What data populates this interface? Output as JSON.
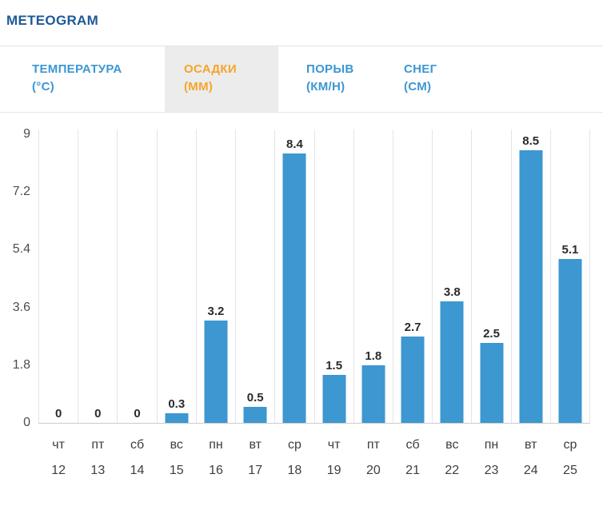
{
  "title": "METEOGRAM",
  "colors": {
    "title": "#1e5a96",
    "tab_text": "#3b97d3",
    "tab_active_text": "#f6a52a",
    "tab_active_bg": "#ececec",
    "bar": "#3d97d0",
    "value_label": "#2b2b2b",
    "axis_label": "#4d4d4d",
    "day_label": "#3e3e3e",
    "grid": "#e5e5e5",
    "axis_line": "#cccccc",
    "tab_border": "#e5e5e5"
  },
  "tabs": [
    {
      "id": "temperature",
      "line1": "ТЕМПЕРАТУРА",
      "line2": "(°C)",
      "active": false
    },
    {
      "id": "precipitation",
      "line1": "ОСАДКИ",
      "line2": "(ММ)",
      "active": true
    },
    {
      "id": "gust",
      "line1": "ПОРЫВ",
      "line2": "(КМ/Н)",
      "active": false
    },
    {
      "id": "snow",
      "line1": "СНЕГ",
      "line2": "(СМ)",
      "active": false
    }
  ],
  "chart_data": {
    "type": "bar",
    "title": "ОСАДКИ (ММ)",
    "xlabel": "",
    "ylabel": "",
    "categories": [
      "чт",
      "пт",
      "сб",
      "вс",
      "пн",
      "вт",
      "ср",
      "чт",
      "пт",
      "сб",
      "вс",
      "пн",
      "вт",
      "ср"
    ],
    "dates": [
      "12",
      "13",
      "14",
      "15",
      "16",
      "17",
      "18",
      "19",
      "20",
      "21",
      "22",
      "23",
      "24",
      "25"
    ],
    "values": [
      0,
      0,
      0,
      0.3,
      3.2,
      0.5,
      8.4,
      1.5,
      1.8,
      2.7,
      3.8,
      2.5,
      8.5,
      5.1
    ],
    "value_labels": [
      "0",
      "0",
      "0",
      "0.3",
      "3.2",
      "0.5",
      "8.4",
      "1.5",
      "1.8",
      "2.7",
      "3.8",
      "2.5",
      "8.5",
      "5.1"
    ],
    "yticks": [
      9,
      7.2,
      5.4,
      3.6,
      1.8,
      0
    ],
    "ylim": [
      0,
      9
    ],
    "grid": "vertical-only",
    "legend": "none",
    "bar_color": "#3d97d0"
  }
}
